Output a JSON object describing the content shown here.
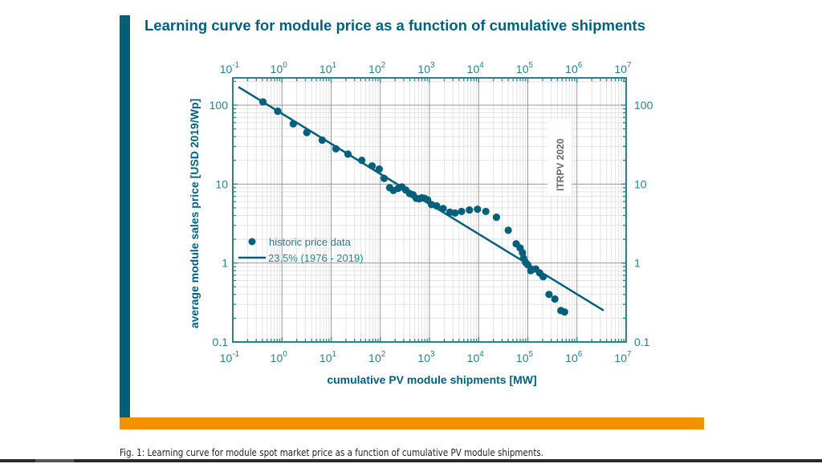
{
  "page": {
    "caption": "Fig. 1: Learning curve for module spot market price as a function of cumulative PV module shipments.",
    "colors": {
      "accent_blue": "#00607a",
      "accent_orange": "#f29200",
      "series": "#005f7a",
      "axis": "#2d7f8c"
    }
  },
  "chart_data": {
    "type": "scatter",
    "title": "Learning curve for module price as a function of cumulative shipments",
    "xlabel": "cumulative PV module shipments [MW]",
    "ylabel": "average module sales price [USD 2019/Wp]",
    "xscale": "log",
    "yscale": "log",
    "xlim": [
      0.1,
      10000000
    ],
    "ylim": [
      0.1,
      200
    ],
    "grid": true,
    "watermark": "ITRPV 2020",
    "legend_position": "left-middle",
    "x_ticks": [
      {
        "base": "10",
        "exp": "-1",
        "value": 0.1
      },
      {
        "base": "10",
        "exp": "0",
        "value": 1
      },
      {
        "base": "10",
        "exp": "1",
        "value": 10
      },
      {
        "base": "10",
        "exp": "2",
        "value": 100
      },
      {
        "base": "10",
        "exp": "3",
        "value": 1000
      },
      {
        "base": "10",
        "exp": "4",
        "value": 10000
      },
      {
        "base": "10",
        "exp": "5",
        "value": 100000
      },
      {
        "base": "10",
        "exp": "6",
        "value": 1000000
      },
      {
        "base": "10",
        "exp": "7",
        "value": 10000000
      }
    ],
    "y_ticks": [
      {
        "label": "0.1",
        "value": 0.1
      },
      {
        "label": "1",
        "value": 1
      },
      {
        "label": "10",
        "value": 10
      },
      {
        "label": "100",
        "value": 100
      }
    ],
    "series": [
      {
        "name": "historic price data",
        "kind": "scatter",
        "points": [
          [
            0.41,
            110
          ],
          [
            0.82,
            84
          ],
          [
            1.7,
            58
          ],
          [
            3.2,
            45
          ],
          [
            6.6,
            36
          ],
          [
            12.5,
            28
          ],
          [
            22,
            24
          ],
          [
            42,
            20
          ],
          [
            68,
            17
          ],
          [
            95,
            15.5
          ],
          [
            120,
            11.8
          ],
          [
            155,
            9.0
          ],
          [
            185,
            8.3
          ],
          [
            230,
            8.8
          ],
          [
            275,
            9.2
          ],
          [
            330,
            8.4
          ],
          [
            395,
            7.6
          ],
          [
            465,
            7.3
          ],
          [
            540,
            6.6
          ],
          [
            620,
            6.5
          ],
          [
            700,
            6.7
          ],
          [
            800,
            6.6
          ],
          [
            920,
            6.3
          ],
          [
            1100,
            5.5
          ],
          [
            1400,
            5.3
          ],
          [
            1900,
            4.9
          ],
          [
            2600,
            4.4
          ],
          [
            3300,
            4.3
          ],
          [
            4500,
            4.5
          ],
          [
            6500,
            4.7
          ],
          [
            9500,
            4.8
          ],
          [
            14000,
            4.5
          ],
          [
            23000,
            3.8
          ],
          [
            40000,
            2.6
          ],
          [
            58000,
            1.75
          ],
          [
            70000,
            1.55
          ],
          [
            78000,
            1.35
          ],
          [
            82000,
            1.15
          ],
          [
            90000,
            1.02
          ],
          [
            100000,
            0.95
          ],
          [
            115000,
            0.8
          ],
          [
            145000,
            0.84
          ],
          [
            175000,
            0.75
          ],
          [
            205000,
            0.67
          ],
          [
            270000,
            0.4
          ],
          [
            355000,
            0.35
          ],
          [
            470000,
            0.25
          ],
          [
            560000,
            0.24
          ]
        ]
      },
      {
        "name": "23.5% (1976 - 2019)",
        "kind": "line",
        "points": [
          [
            0.13,
            170
          ],
          [
            3500000,
            0.25
          ]
        ]
      }
    ]
  }
}
